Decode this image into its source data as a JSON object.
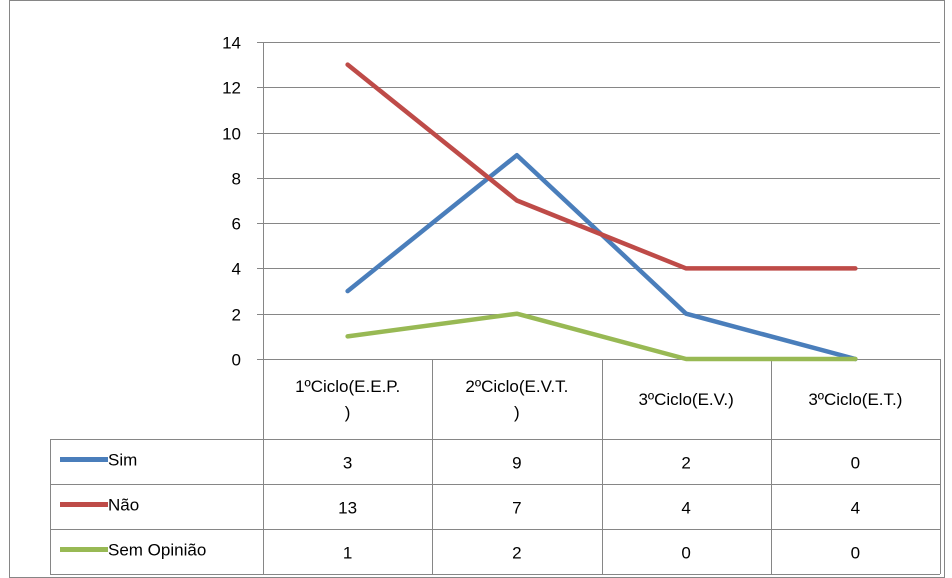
{
  "chart_data": {
    "type": "line",
    "categories": [
      "1ºCiclo(E.E.P.)",
      "2ºCiclo(E.V.T.)",
      "3ºCiclo(E.V.)",
      "3ºCiclo(E.T.)"
    ],
    "category_label_lines": [
      [
        "1ºCiclo(E.E.P.",
        ")"
      ],
      [
        "2ºCiclo(E.V.T.",
        ")"
      ],
      [
        "3ºCiclo(E.V.)"
      ],
      [
        "3ºCiclo(E.T.)"
      ]
    ],
    "series": [
      {
        "name": "Sim",
        "values": [
          3,
          9,
          2,
          0
        ],
        "color": "#4a7ebb"
      },
      {
        "name": "Não",
        "values": [
          13,
          7,
          4,
          4
        ],
        "color": "#be4b48"
      },
      {
        "name": "Sem Opinião",
        "values": [
          1,
          2,
          0,
          0
        ],
        "color": "#98b954"
      }
    ],
    "ylim": [
      0,
      14
    ],
    "yticks": [
      "0",
      "2",
      "4",
      "6",
      "8",
      "10",
      "12",
      "14"
    ],
    "grid": true,
    "legend": "data-table",
    "title": "",
    "xlabel": "",
    "ylabel": ""
  }
}
